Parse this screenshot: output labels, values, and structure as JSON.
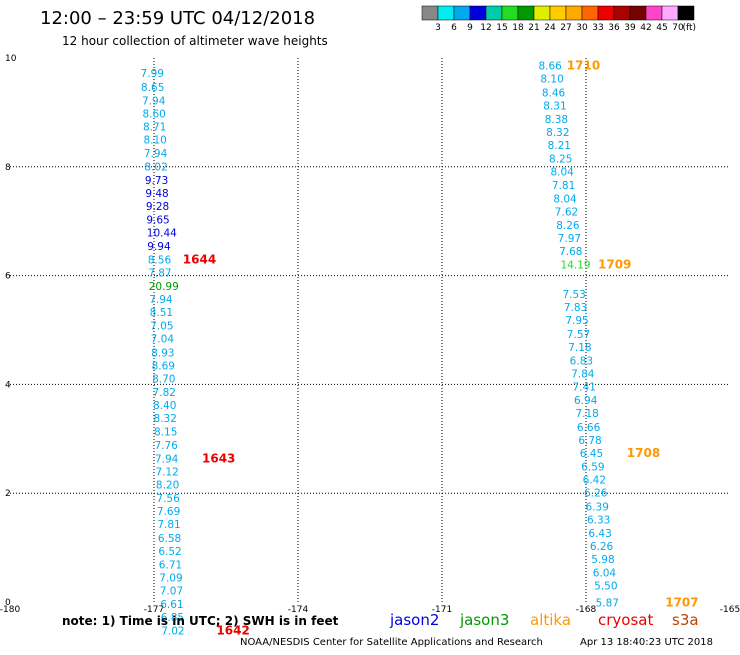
{
  "header": {
    "title": "12:00 – 23:59 UTC 04/12/2018",
    "subtitle": "12 hour collection of altimeter wave heights"
  },
  "legend": {
    "unit": "(ft)",
    "bins": [
      {
        "label": "",
        "color": "#888888"
      },
      {
        "label": "3",
        "color": "#00eeee"
      },
      {
        "label": "6",
        "color": "#00aaee"
      },
      {
        "label": "9",
        "color": "#0000dd"
      },
      {
        "label": "12",
        "color": "#00ccaa"
      },
      {
        "label": "15",
        "color": "#22dd22"
      },
      {
        "label": "18",
        "color": "#009900"
      },
      {
        "label": "21",
        "color": "#ddee00"
      },
      {
        "label": "24",
        "color": "#ffcc00"
      },
      {
        "label": "27",
        "color": "#ffaa00"
      },
      {
        "label": "30",
        "color": "#ff6600"
      },
      {
        "label": "33",
        "color": "#ee0000"
      },
      {
        "label": "36",
        "color": "#aa0000"
      },
      {
        "label": "39",
        "color": "#770000"
      },
      {
        "label": "42",
        "color": "#ff44cc"
      },
      {
        "label": "45",
        "color": "#ffaaff"
      },
      {
        "label": "70",
        "color": "#000000"
      }
    ]
  },
  "footer": {
    "note": "note: 1) Time is in UTC; 2) SWH is in feet",
    "satellites": [
      {
        "name": "jason2",
        "color": "#0000dd"
      },
      {
        "name": "jason3",
        "color": "#009900"
      },
      {
        "name": "altika",
        "color": "#ff9900"
      },
      {
        "name": "cryosat",
        "color": "#ee0000"
      },
      {
        "name": "s3a",
        "color": "#bb4400"
      }
    ],
    "credit": "NOAA/NESDIS Center for Satellite Applications and Research",
    "timestamp": "Apr 13 18:40:23 UTC 2018"
  },
  "chart_data": {
    "type": "scatter",
    "title": "12:00 – 23:59 UTC 04/12/2018",
    "subtitle": "12 hour collection of altimeter wave heights",
    "xlim": [
      -180,
      -165
    ],
    "ylim": [
      0,
      10
    ],
    "x_ticks": [
      -180,
      -177,
      -174,
      -171,
      -168,
      -165
    ],
    "x_tick_labels": [
      "-180",
      "-177",
      "-174",
      "-171",
      "-168",
      "-165"
    ],
    "y_ticks": [
      0,
      2,
      4,
      6,
      8,
      10
    ],
    "grid": true,
    "legend": "bottom",
    "series": [
      {
        "name": "jason2",
        "color_key": "swh",
        "points": [
          {
            "x": -177.28,
            "y": 9.72,
            "label": "7.99",
            "color": "#00aaee"
          },
          {
            "x": -177.27,
            "y": 9.47,
            "label": "8.65",
            "color": "#00aaee"
          },
          {
            "x": -177.25,
            "y": 9.22,
            "label": "7.94",
            "color": "#00aaee"
          },
          {
            "x": -177.24,
            "y": 8.98,
            "label": "8.60",
            "color": "#00aaee"
          },
          {
            "x": -177.23,
            "y": 8.74,
            "label": "8.71",
            "color": "#00aaee"
          },
          {
            "x": -177.22,
            "y": 8.5,
            "label": "8.10",
            "color": "#00aaee"
          },
          {
            "x": -177.21,
            "y": 8.25,
            "label": "7.94",
            "color": "#00aaee"
          },
          {
            "x": -177.2,
            "y": 8.01,
            "label": "8.02",
            "color": "#00aaee"
          },
          {
            "x": -177.19,
            "y": 7.76,
            "label": "9.73",
            "color": "#0000dd"
          },
          {
            "x": -177.18,
            "y": 7.52,
            "label": "9.48",
            "color": "#0000dd"
          },
          {
            "x": -177.17,
            "y": 7.28,
            "label": "9.28",
            "color": "#0000dd"
          },
          {
            "x": -177.16,
            "y": 7.03,
            "label": "9.65",
            "color": "#0000dd"
          },
          {
            "x": -177.15,
            "y": 6.79,
            "label": "10.44",
            "color": "#0000dd"
          },
          {
            "x": -177.14,
            "y": 6.54,
            "label": "9.94",
            "color": "#0000dd"
          },
          {
            "x": -177.13,
            "y": 6.3,
            "label": "8.56",
            "color": "#00aaee"
          },
          {
            "x": -177.12,
            "y": 6.06,
            "label": "7.87",
            "color": "#00aaee"
          },
          {
            "x": -177.11,
            "y": 5.81,
            "label": "20.99",
            "color": "#009900"
          },
          {
            "x": -177.1,
            "y": 5.57,
            "label": "7.94",
            "color": "#00aaee"
          },
          {
            "x": -177.09,
            "y": 5.33,
            "label": "8.51",
            "color": "#00aaee"
          },
          {
            "x": -177.08,
            "y": 5.08,
            "label": "7.05",
            "color": "#00aaee"
          },
          {
            "x": -177.07,
            "y": 4.84,
            "label": "7.04",
            "color": "#00aaee"
          },
          {
            "x": -177.06,
            "y": 4.59,
            "label": "8.93",
            "color": "#00aaee"
          },
          {
            "x": -177.05,
            "y": 4.35,
            "label": "8.69",
            "color": "#00aaee"
          },
          {
            "x": -177.04,
            "y": 4.11,
            "label": "8.70",
            "color": "#00aaee"
          },
          {
            "x": -177.03,
            "y": 3.86,
            "label": "7.82",
            "color": "#00aaee"
          },
          {
            "x": -177.02,
            "y": 3.62,
            "label": "8.40",
            "color": "#00aaee"
          },
          {
            "x": -177.01,
            "y": 3.38,
            "label": "8.32",
            "color": "#00aaee"
          },
          {
            "x": -177.0,
            "y": 3.13,
            "label": "8.15",
            "color": "#00aaee"
          },
          {
            "x": -176.99,
            "y": 2.89,
            "label": "7.76",
            "color": "#00aaee"
          },
          {
            "x": -176.98,
            "y": 2.64,
            "label": "7.94",
            "color": "#00aaee"
          },
          {
            "x": -176.97,
            "y": 2.4,
            "label": "7.12",
            "color": "#00aaee"
          },
          {
            "x": -176.96,
            "y": 2.16,
            "label": "8.20",
            "color": "#00aaee"
          },
          {
            "x": -176.95,
            "y": 1.91,
            "label": "7.56",
            "color": "#00aaee"
          },
          {
            "x": -176.94,
            "y": 1.67,
            "label": "7.69",
            "color": "#00aaee"
          },
          {
            "x": -176.93,
            "y": 1.43,
            "label": "7.81",
            "color": "#00aaee"
          },
          {
            "x": -176.92,
            "y": 1.18,
            "label": "6.58",
            "color": "#00aaee"
          },
          {
            "x": -176.91,
            "y": 0.94,
            "label": "6.52",
            "color": "#00aaee"
          },
          {
            "x": -176.9,
            "y": 0.69,
            "label": "6.71",
            "color": "#00aaee"
          },
          {
            "x": -176.89,
            "y": 0.45,
            "label": "7.09",
            "color": "#00aaee"
          },
          {
            "x": -176.88,
            "y": 0.21,
            "label": "7.07",
            "color": "#00aaee"
          },
          {
            "x": -176.87,
            "y": -0.04,
            "label": "6.61",
            "color": "#00aaee"
          },
          {
            "x": -176.86,
            "y": -0.28,
            "label": "6.85",
            "color": "#00aaee"
          },
          {
            "x": -176.85,
            "y": -0.52,
            "label": "7.02",
            "color": "#00aaee"
          },
          {
            "x": -168.99,
            "y": 9.86,
            "label": "8.66",
            "color": "#00aaee"
          },
          {
            "x": -168.95,
            "y": 9.62,
            "label": "8.10",
            "color": "#00aaee"
          },
          {
            "x": -168.92,
            "y": 9.37,
            "label": "8.46",
            "color": "#00aaee"
          },
          {
            "x": -168.89,
            "y": 9.13,
            "label": "8.31",
            "color": "#00aaee"
          },
          {
            "x": -168.86,
            "y": 8.88,
            "label": "8.38",
            "color": "#00aaee"
          },
          {
            "x": -168.83,
            "y": 8.64,
            "label": "8.32",
            "color": "#00aaee"
          },
          {
            "x": -168.8,
            "y": 8.4,
            "label": "8.21",
            "color": "#00aaee"
          },
          {
            "x": -168.77,
            "y": 8.15,
            "label": "8.25",
            "color": "#00aaee"
          },
          {
            "x": -168.74,
            "y": 7.91,
            "label": "8.04",
            "color": "#00aaee"
          },
          {
            "x": -168.71,
            "y": 7.67,
            "label": "7.81",
            "color": "#00aaee"
          },
          {
            "x": -168.68,
            "y": 7.42,
            "label": "8.04",
            "color": "#00aaee"
          },
          {
            "x": -168.65,
            "y": 7.18,
            "label": "7.62",
            "color": "#00aaee"
          },
          {
            "x": -168.62,
            "y": 6.93,
            "label": "8.26",
            "color": "#00aaee"
          },
          {
            "x": -168.59,
            "y": 6.69,
            "label": "7.97",
            "color": "#00aaee"
          },
          {
            "x": -168.56,
            "y": 6.45,
            "label": "7.68",
            "color": "#00aaee"
          },
          {
            "x": -168.53,
            "y": 6.2,
            "label": "14.19",
            "color": "#22dd22"
          },
          {
            "x": -168.49,
            "y": 5.66,
            "label": "7.53",
            "color": "#00aaee"
          },
          {
            "x": -168.46,
            "y": 5.42,
            "label": "7.83",
            "color": "#00aaee"
          },
          {
            "x": -168.43,
            "y": 5.18,
            "label": "7.95",
            "color": "#00aaee"
          },
          {
            "x": -168.4,
            "y": 4.93,
            "label": "7.57",
            "color": "#00aaee"
          },
          {
            "x": -168.37,
            "y": 4.69,
            "label": "7.18",
            "color": "#00aaee"
          },
          {
            "x": -168.34,
            "y": 4.44,
            "label": "6.83",
            "color": "#00aaee"
          },
          {
            "x": -168.31,
            "y": 4.2,
            "label": "7.84",
            "color": "#00aaee"
          },
          {
            "x": -168.28,
            "y": 3.96,
            "label": "7.41",
            "color": "#00aaee"
          },
          {
            "x": -168.25,
            "y": 3.71,
            "label": "6.94",
            "color": "#00aaee"
          },
          {
            "x": -168.22,
            "y": 3.47,
            "label": "7.18",
            "color": "#00aaee"
          },
          {
            "x": -168.19,
            "y": 3.22,
            "label": "6.66",
            "color": "#00aaee"
          },
          {
            "x": -168.16,
            "y": 2.98,
            "label": "6.78",
            "color": "#00aaee"
          },
          {
            "x": -168.13,
            "y": 2.74,
            "label": "6.45",
            "color": "#00aaee"
          },
          {
            "x": -168.1,
            "y": 2.49,
            "label": "6.59",
            "color": "#00aaee"
          },
          {
            "x": -168.07,
            "y": 2.25,
            "label": "6.42",
            "color": "#00aaee"
          },
          {
            "x": -168.04,
            "y": 2.01,
            "label": "6.26",
            "color": "#00aaee"
          },
          {
            "x": -168.01,
            "y": 1.76,
            "label": "6.39",
            "color": "#00aaee"
          },
          {
            "x": -167.98,
            "y": 1.52,
            "label": "6.33",
            "color": "#00aaee"
          },
          {
            "x": -167.95,
            "y": 1.27,
            "label": "6.43",
            "color": "#00aaee"
          },
          {
            "x": -167.92,
            "y": 1.03,
            "label": "6.26",
            "color": "#00aaee"
          },
          {
            "x": -167.89,
            "y": 0.79,
            "label": "5.98",
            "color": "#00aaee"
          },
          {
            "x": -167.86,
            "y": 0.54,
            "label": "6.04",
            "color": "#00aaee"
          },
          {
            "x": -167.83,
            "y": 0.3,
            "label": "5.50",
            "color": "#00aaee"
          },
          {
            "x": -167.8,
            "y": -0.01,
            "label": "5.87",
            "color": "#00aaee"
          }
        ]
      }
    ],
    "annotations": [
      {
        "text": "1644",
        "x": -176.4,
        "y": 6.3,
        "color": "#ee0000"
      },
      {
        "text": "1643",
        "x": -176.0,
        "y": 2.64,
        "color": "#ee0000"
      },
      {
        "text": "1642",
        "x": -175.7,
        "y": -0.52,
        "color": "#ee0000"
      },
      {
        "text": "1710",
        "x": -168.4,
        "y": 9.86,
        "color": "#ff9900"
      },
      {
        "text": "1709",
        "x": -167.75,
        "y": 6.2,
        "color": "#ff9900"
      },
      {
        "text": "1708",
        "x": -167.15,
        "y": 2.74,
        "color": "#ff9900"
      },
      {
        "text": "1707",
        "x": -166.35,
        "y": -0.01,
        "color": "#ff9900"
      }
    ]
  }
}
